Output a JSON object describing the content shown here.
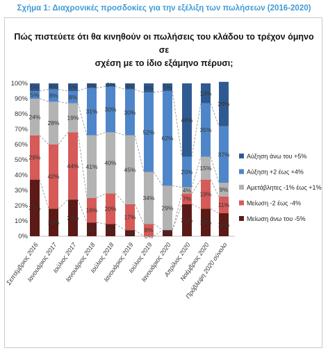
{
  "figure_title": "Σχήμα 1: Διαχρονικές προσδοκίες για την εξέλιξη των πωλήσεων (2016-2020)",
  "chart_data": {
    "type": "bar",
    "stacked": true,
    "normalized": true,
    "title": "Πώς πιστεύετε ότι θα κινηθούν οι πωλήσεις του κλάδου το τρέχον όμηνο σε σχέση με το ίδιο εξάμηνο πέρυσι;",
    "title_lines": [
      "Πώς πιστεύετε ότι θα κινηθούν οι πωλήσεις του κλάδου το τρέχον όμηνο σε",
      "σχέση με το ίδιο εξάμηνο πέρυσι;"
    ],
    "xlabel": "",
    "ylabel": "",
    "ylim": [
      0,
      100
    ],
    "yticks": [
      "0%",
      "10%",
      "20%",
      "30%",
      "40%",
      "50%",
      "60%",
      "70%",
      "80%",
      "90%",
      "100%"
    ],
    "categories": [
      "Σεπτέμβριος 2016",
      "Ιανουάριος 2017",
      "Ιούλιος 2017",
      "Ιανουάριος 2018",
      "Ιούλιος 2018",
      "Ιανουάριος 2019",
      "Ιούλιος 2019",
      "Ιανουάριος 2020",
      "Απρίλιος 2020",
      "Νοέμβριος 2020",
      "Πρόβλεψη 2020 σύνολο"
    ],
    "series": [
      {
        "name": "Μείωση άνω του -5%",
        "color": "#5c1a16",
        "values": [
          37,
          18,
          24,
          9,
          8,
          4,
          0,
          4,
          21,
          18,
          15
        ]
      },
      {
        "name": "Μείωση -2 έως -4%",
        "color": "#d65a58",
        "values": [
          29,
          42,
          44,
          16,
          20,
          17,
          8,
          0,
          7,
          19,
          11
        ]
      },
      {
        "name": "Αμετάβλητες -1% έως +1%",
        "color": "#b3b3b3",
        "values": [
          24,
          28,
          19,
          41,
          40,
          45,
          34,
          29,
          4,
          15,
          9
        ]
      },
      {
        "name": "Αύξηση +2 έως +4%",
        "color": "#4f86c9",
        "values": [
          5,
          8,
          8,
          31,
          30,
          30,
          52,
          62,
          20,
          35,
          37
        ]
      },
      {
        "name": "Αύξηση άνω του +5%",
        "color": "#2f5a91",
        "values": [
          5,
          4,
          5,
          3,
          2,
          4,
          6,
          5,
          48,
          13,
          29
        ]
      }
    ],
    "data_labels": [
      [
        "37%",
        "29%",
        "24%",
        "5%",
        "5%"
      ],
      [
        "18%",
        "42%",
        "28%",
        "8%",
        "4%"
      ],
      [
        "24%",
        "44%",
        "19%",
        "8%",
        "5%"
      ],
      [
        "9%",
        "16%",
        "41%",
        "31%",
        "3%"
      ],
      [
        "8%",
        "20%",
        "40%",
        "30%",
        "2%"
      ],
      [
        "4%",
        "17%",
        "45%",
        "30%",
        "4%"
      ],
      [
        "0%",
        "8%",
        "34%",
        "52%",
        "6%"
      ],
      [
        "4%",
        "0%",
        "29%",
        "62%",
        "5%"
      ],
      [
        "21%",
        "7%",
        "4%",
        "20%",
        "48%"
      ],
      [
        "18%",
        "19%",
        "15%",
        "35%",
        "13%"
      ],
      [
        "15%",
        "11%",
        "9%",
        "37%",
        "29%"
      ]
    ],
    "legend_position": "right",
    "legend_order": [
      "Αύξηση άνω του +5%",
      "Αύξηση +2 έως +4%",
      "Αμετάβλητες -1% έως +1%",
      "Μείωση -2 έως -4%",
      "Μείωση άνω του -5%"
    ],
    "grid": false,
    "connector_lines": "dashed"
  }
}
